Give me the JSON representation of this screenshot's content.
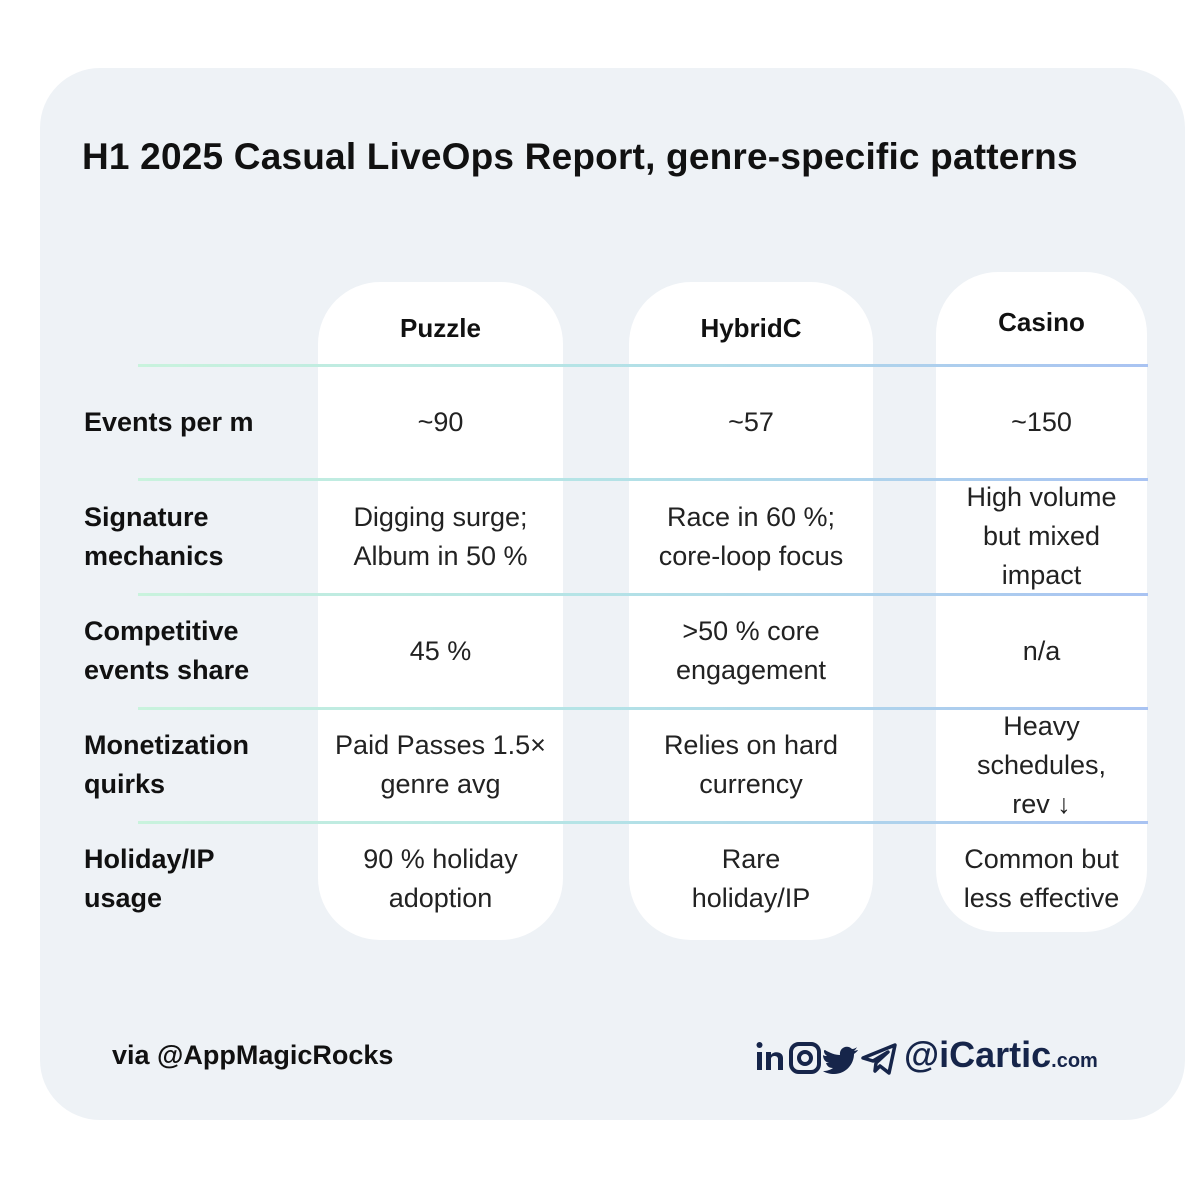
{
  "title": "H1 2025 Casual LiveOps Report, genre-specific patterns",
  "table": {
    "columns": [
      "Puzzle",
      "HybridC",
      "Casino"
    ],
    "rows": [
      {
        "label": [
          "Events per m"
        ],
        "cells": [
          [
            "~90"
          ],
          [
            "~57"
          ],
          [
            "~150"
          ]
        ]
      },
      {
        "label": [
          "Signature",
          "mechanics"
        ],
        "cells": [
          [
            "Digging surge;",
            "Album in 50 %"
          ],
          [
            "Race in 60 %;",
            "core-loop focus"
          ],
          [
            "High volume",
            "but mixed",
            "impact"
          ]
        ]
      },
      {
        "label": [
          "Competitive",
          "events share"
        ],
        "cells": [
          [
            "45 %"
          ],
          [
            ">50 % core",
            "engagement"
          ],
          [
            "n/a"
          ]
        ]
      },
      {
        "label": [
          "Monetization",
          "quirks"
        ],
        "cells": [
          [
            "Paid Passes 1.5×",
            "genre avg"
          ],
          [
            "Relies on hard",
            "currency"
          ],
          [
            "Heavy",
            "schedules,",
            "rev ↓"
          ]
        ]
      },
      {
        "label": [
          "Holiday/IP",
          "usage"
        ],
        "cells": [
          [
            "90 % holiday",
            "adoption"
          ],
          [
            "Rare",
            "holiday/IP"
          ],
          [
            "Common but",
            "less effective"
          ]
        ]
      }
    ]
  },
  "footer": {
    "source": "via @AppMagicRocks",
    "handle": "@iCartic",
    "domain": ".com"
  }
}
